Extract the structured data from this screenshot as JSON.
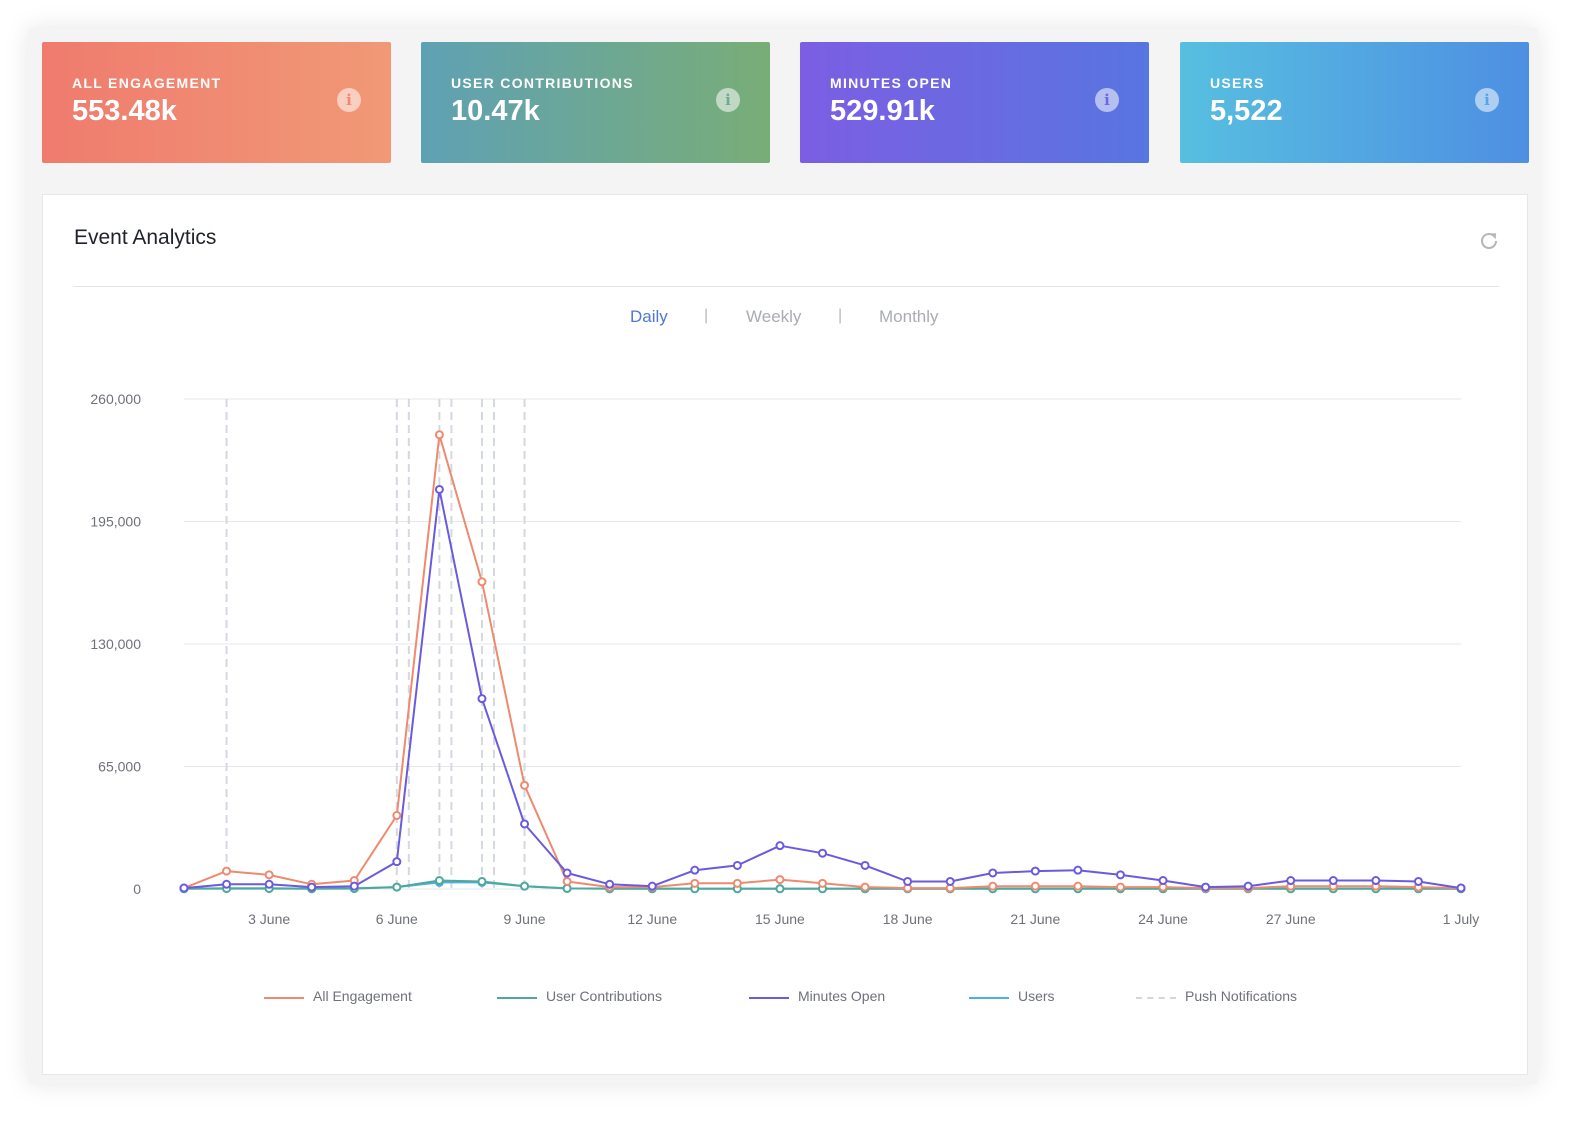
{
  "stats": [
    {
      "id": "engagement",
      "label": "ALL ENGAGEMENT",
      "value": "553.48k",
      "info_icon": "info-icon"
    },
    {
      "id": "contrib",
      "label": "USER CONTRIBUTIONS",
      "value": "10.47k",
      "info_icon": "info-icon"
    },
    {
      "id": "minutes",
      "label": "MINUTES OPEN",
      "value": "529.91k",
      "info_icon": "info-icon"
    },
    {
      "id": "users",
      "label": "USERS",
      "value": "5,522",
      "info_icon": "info-icon"
    }
  ],
  "panel": {
    "title": "Event Analytics",
    "refresh_icon": "refresh-icon",
    "tabs": [
      {
        "label": "Daily",
        "active": true
      },
      {
        "label": "Weekly",
        "active": false
      },
      {
        "label": "Monthly",
        "active": false
      }
    ],
    "tab_separator": "|"
  },
  "colors": {
    "all_engagement": "#ef8a6e",
    "user_contributions": "#4fa89c",
    "minutes_open": "#6a5ae0",
    "users": "#4fb0e0",
    "push_notifications": "#d4d9e0",
    "active_tab": "#4f78d4"
  },
  "chart_data": {
    "type": "line",
    "x": [
      "1 June",
      "2 June",
      "3 June",
      "4 June",
      "5 June",
      "6 June",
      "7 June",
      "8 June",
      "9 June",
      "10 June",
      "11 June",
      "12 June",
      "13 June",
      "14 June",
      "15 June",
      "16 June",
      "17 June",
      "18 June",
      "19 June",
      "20 June",
      "21 June",
      "22 June",
      "23 June",
      "24 June",
      "25 June",
      "26 June",
      "27 June",
      "28 June",
      "29 June",
      "30 June",
      "1 July"
    ],
    "x_ticks": [
      "3 June",
      "6 June",
      "9 June",
      "12 June",
      "15 June",
      "18 June",
      "21 June",
      "24 June",
      "27 June",
      "1 July"
    ],
    "y_ticks": [
      "0",
      "65,000",
      "130,000",
      "195,000",
      "260,000"
    ],
    "ylim": [
      0,
      260000
    ],
    "grid": true,
    "legend_position": "bottom",
    "series": [
      {
        "name": "All Engagement",
        "key": "all_engagement",
        "values": [
          500,
          9500,
          7500,
          2500,
          4500,
          39000,
          241000,
          163000,
          55000,
          4000,
          1000,
          1000,
          3000,
          3000,
          5000,
          3000,
          1000,
          500,
          500,
          1500,
          1500,
          1500,
          1000,
          1000,
          500,
          500,
          1500,
          1500,
          1500,
          1000,
          500
        ]
      },
      {
        "name": "User Contributions",
        "key": "user_contributions",
        "values": [
          100,
          200,
          200,
          100,
          200,
          1000,
          4500,
          4000,
          1500,
          300,
          100,
          100,
          100,
          100,
          100,
          100,
          100,
          100,
          100,
          100,
          100,
          100,
          100,
          100,
          100,
          100,
          100,
          100,
          100,
          100,
          100
        ]
      },
      {
        "name": "Minutes Open",
        "key": "minutes_open",
        "values": [
          500,
          2500,
          2500,
          1000,
          1500,
          14500,
          212000,
          101000,
          34500,
          8500,
          2500,
          1500,
          10000,
          12500,
          23000,
          19000,
          12500,
          4000,
          4000,
          8500,
          9500,
          10000,
          7500,
          4500,
          1000,
          1500,
          4500,
          4500,
          4500,
          4000,
          500
        ]
      },
      {
        "name": "Users",
        "key": "users",
        "values": [
          200,
          400,
          400,
          200,
          400,
          1000,
          3500,
          3500,
          1500,
          300,
          200,
          200,
          200,
          200,
          200,
          200,
          200,
          200,
          200,
          200,
          200,
          200,
          200,
          200,
          200,
          200,
          200,
          200,
          200,
          200,
          200
        ]
      }
    ],
    "push_notifications": {
      "name": "Push Notifications",
      "dates": [
        "2 June",
        "6 June",
        "6 June",
        "7 June",
        "7 June",
        "8 June",
        "8 June",
        "9 June"
      ]
    }
  }
}
